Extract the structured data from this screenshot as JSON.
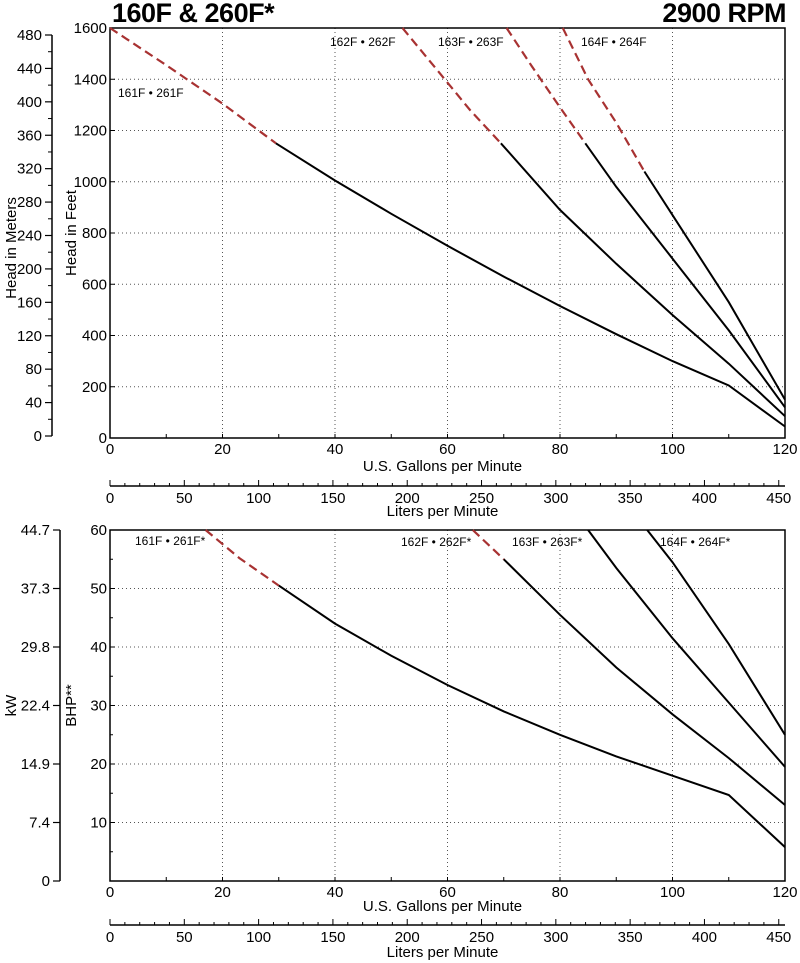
{
  "header": {
    "title": "160F & 260F*",
    "rpm": "2900 RPM"
  },
  "colors": {
    "curve": "#000000",
    "extrapolated": "#a83232",
    "grid": "#555555"
  },
  "chart_data": [
    {
      "type": "line",
      "title": "160F & 260F*",
      "xlabel": "U.S. Gallons per Minute",
      "ylabel": "Head in Feet",
      "secondary_ylabel": "Head in Meters",
      "secondary_xlabel": "Liters per Minute",
      "xlim": [
        0,
        120
      ],
      "ylim": [
        0,
        1600
      ],
      "x_ticks": [
        0,
        20,
        40,
        60,
        80,
        100,
        120
      ],
      "y_ticks": [
        0,
        200,
        400,
        600,
        800,
        1000,
        1200,
        1400,
        1600
      ],
      "secondary_y_ticks": [
        0,
        40,
        80,
        120,
        160,
        200,
        240,
        280,
        320,
        360,
        400,
        440,
        480
      ],
      "secondary_x_ticks": [
        0,
        50,
        100,
        150,
        200,
        250,
        300,
        350,
        400,
        450
      ],
      "grid": true,
      "series": [
        {
          "name": "161F • 261F",
          "style": "dashed",
          "x": [
            0,
            10,
            20,
            29.5
          ],
          "y": [
            1600,
            1455,
            1305,
            1150
          ]
        },
        {
          "name": "161F • 261F",
          "style": "solid",
          "x": [
            29.5,
            40,
            50,
            60,
            70,
            80,
            90,
            100,
            110,
            120
          ],
          "y": [
            1150,
            1005,
            875,
            750,
            630,
            515,
            405,
            300,
            205,
            45
          ]
        },
        {
          "name": "162F • 262F",
          "style": "dashed",
          "x": [
            52,
            58,
            64,
            69.5
          ],
          "y": [
            1600,
            1440,
            1280,
            1150
          ]
        },
        {
          "name": "162F • 262F",
          "style": "solid",
          "x": [
            69.5,
            80,
            90,
            100,
            110,
            120
          ],
          "y": [
            1150,
            890,
            680,
            480,
            290,
            85
          ]
        },
        {
          "name": "163F • 263F",
          "style": "dashed",
          "x": [
            70.5,
            75,
            80,
            84.5
          ],
          "y": [
            1600,
            1450,
            1290,
            1150
          ]
        },
        {
          "name": "163F • 263F",
          "style": "solid",
          "x": [
            84.5,
            90,
            100,
            110,
            120
          ],
          "y": [
            1150,
            980,
            700,
            420,
            120
          ]
        },
        {
          "name": "164F • 264F",
          "style": "dashed",
          "x": [
            80.5,
            85,
            90,
            95
          ],
          "y": [
            1600,
            1400,
            1230,
            1040
          ]
        },
        {
          "name": "164F • 264F",
          "style": "solid",
          "x": [
            95,
            100,
            110,
            120
          ],
          "y": [
            1040,
            870,
            530,
            150
          ]
        }
      ],
      "curve_labels": [
        "161F • 261F",
        "162F • 262F",
        "163F • 263F",
        "164F •  264F"
      ]
    },
    {
      "type": "line",
      "xlabel": "U.S. Gallons per Minute",
      "ylabel": "BHP**",
      "secondary_ylabel": "kW",
      "secondary_xlabel": "Liters per Minute",
      "xlim": [
        0,
        120
      ],
      "ylim": [
        0,
        60
      ],
      "x_ticks": [
        0,
        20,
        40,
        60,
        80,
        100,
        120
      ],
      "y_ticks": [
        10,
        20,
        30,
        40,
        50,
        60
      ],
      "secondary_y_ticks": [
        "0",
        "7.4",
        "14.9",
        "22.4",
        "29.8",
        "37.3",
        "44.7"
      ],
      "secondary_x_ticks": [
        0,
        50,
        100,
        150,
        200,
        250,
        300,
        350,
        400,
        450
      ],
      "grid": true,
      "series": [
        {
          "name": "161F • 261F*",
          "style": "dashed",
          "x": [
            17,
            23,
            30
          ],
          "y": [
            60,
            55.2,
            50.5
          ]
        },
        {
          "name": "161F • 261F*",
          "style": "solid",
          "x": [
            30,
            40,
            50,
            60,
            70,
            80,
            90,
            100,
            110,
            120
          ],
          "y": [
            50.5,
            44,
            38.5,
            33.5,
            29,
            25,
            21.3,
            18,
            14.7,
            5.8
          ]
        },
        {
          "name": "162F • 262F*",
          "style": "dashed",
          "x": [
            64.5,
            70
          ],
          "y": [
            60,
            55
          ]
        },
        {
          "name": "162F • 262F*",
          "style": "solid",
          "x": [
            70,
            80,
            90,
            100,
            110,
            120
          ],
          "y": [
            55,
            45.5,
            36.5,
            28.5,
            21,
            13
          ]
        },
        {
          "name": "163F • 263F*",
          "style": "solid",
          "x": [
            85,
            90,
            100,
            110,
            120
          ],
          "y": [
            60,
            53.5,
            41.5,
            30.5,
            19.5
          ]
        },
        {
          "name": "164F • 264F*",
          "style": "solid",
          "x": [
            95.5,
            100,
            110,
            120
          ],
          "y": [
            60,
            54.5,
            40.5,
            25
          ]
        }
      ],
      "curve_labels": [
        "161F • 261F*",
        "162F • 262F*",
        "163F • 263F*",
        "164F • 264F*"
      ]
    }
  ]
}
